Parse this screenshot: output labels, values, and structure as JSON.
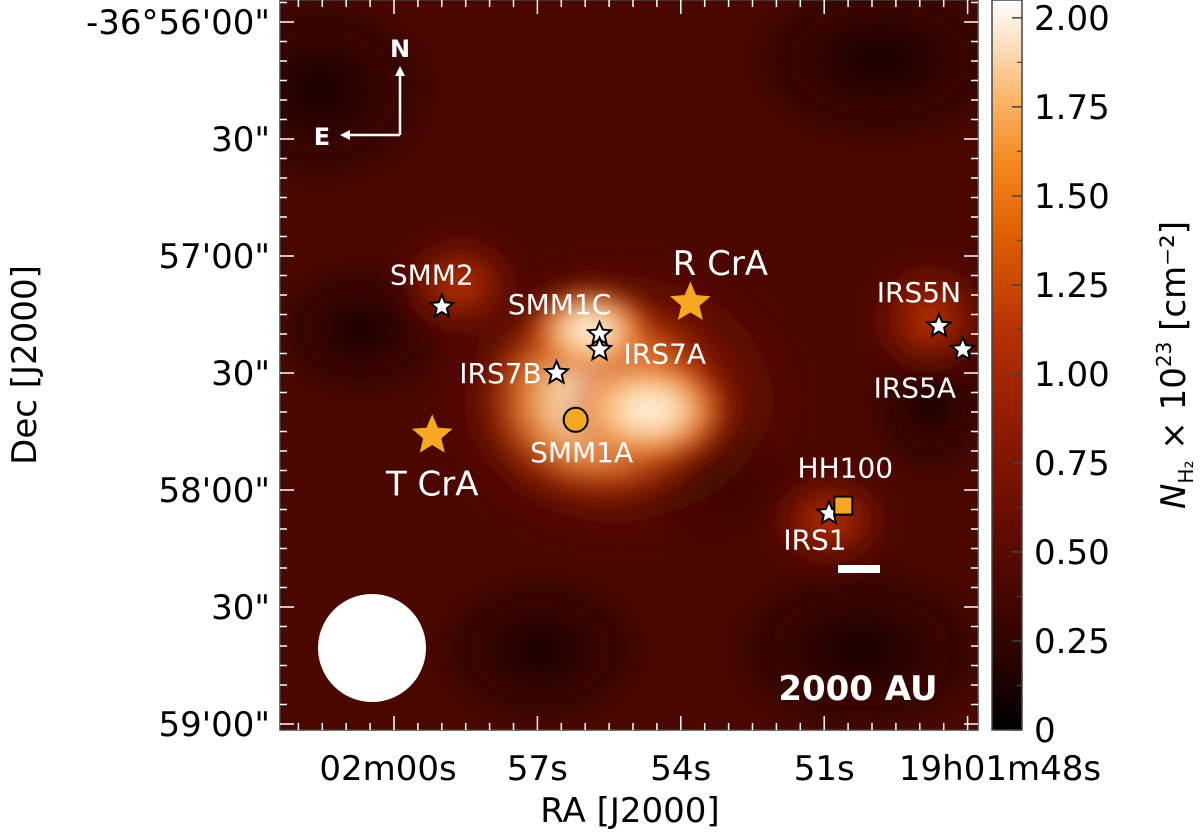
{
  "chart_data": {
    "type": "heatmap",
    "xlabel": "RA [J2000]",
    "ylabel": "Dec [J2000]",
    "x_ticks": [
      "02m00s",
      "57s",
      "54s",
      "51s",
      "19h01m48s"
    ],
    "y_ticks": [
      "-36°56'00\"",
      "30\"",
      "57'00\"",
      "30\"",
      "58'00\"",
      "30\"",
      "59'00\""
    ],
    "colorbar": {
      "label_prefix": "N",
      "label_sub": "H₂",
      "label_mid": " × 10",
      "label_sup": "23",
      "label_unit": " [cm⁻²]",
      "ticks": [
        "0",
        "0.25",
        "0.50",
        "0.75",
        "1.00",
        "1.25",
        "1.50",
        "1.75",
        "2.00"
      ],
      "range": [
        0,
        2.05
      ],
      "colormap": [
        "#000000",
        "#2a0300",
        "#5a0a00",
        "#8a1800",
        "#b83200",
        "#e06000",
        "#f58a20",
        "#fbb870",
        "#fde0c0",
        "#ffffff"
      ]
    },
    "compass": {
      "north": "N",
      "east": "E"
    },
    "scalebar_label": "2000 AU",
    "sources": [
      {
        "name": "SMM2",
        "ra_s": 59.0,
        "dec_s": 73,
        "marker": "star-white"
      },
      {
        "name": "SMM1C",
        "ra_s": 55.7,
        "dec_s": 80,
        "marker": "star-white"
      },
      {
        "name": "IRS7A",
        "ra_s": 55.7,
        "dec_s": 84,
        "marker": "star-white"
      },
      {
        "name": "IRS7B",
        "ra_s": 56.6,
        "dec_s": 90,
        "marker": "star-white"
      },
      {
        "name": "R CrA",
        "ra_s": 53.8,
        "dec_s": 72,
        "marker": "star-orange"
      },
      {
        "name": "T CrA",
        "ra_s": 59.2,
        "dec_s": 106,
        "marker": "star-orange"
      },
      {
        "name": "SMM1A",
        "ra_s": 56.2,
        "dec_s": 102,
        "marker": "circle-orange"
      },
      {
        "name": "IRS5N",
        "ra_s": 48.6,
        "dec_s": 78,
        "marker": "star-white"
      },
      {
        "name": "IRS5A",
        "ra_s": 48.1,
        "dec_s": 84,
        "marker": "star-white"
      },
      {
        "name": "IRS1",
        "ra_s": 50.9,
        "dec_s": 126,
        "marker": "star-white"
      },
      {
        "name": "HH100",
        "ra_s": 50.6,
        "dec_s": 124,
        "marker": "square-orange"
      }
    ],
    "beam": "white-circle"
  }
}
